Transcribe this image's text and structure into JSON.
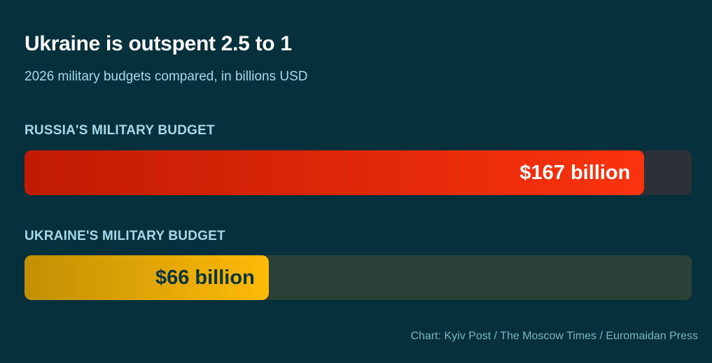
{
  "header": {
    "title": "Ukraine is outspent 2.5 to 1",
    "subtitle": "2026 military budgets compared, in billions USD"
  },
  "bars": [
    {
      "label": "RUSSIA'S MILITARY BUDGET",
      "value": 167,
      "value_label": "$167 billion",
      "percent_of_scale": 92.9,
      "fill_gradient_start": "#c01b03",
      "fill_gradient_end": "#fb330e",
      "track_color": "#2c3037",
      "value_text_color": "#ffffff"
    },
    {
      "label": "UKRAINE'S MILITARY BUDGET",
      "value": 66,
      "value_label": "$66 billion",
      "percent_of_scale": 36.6,
      "fill_gradient_start": "#c29004",
      "fill_gradient_end": "#fdba08",
      "track_color": "#2b4137",
      "value_text_color": "#073440"
    }
  ],
  "footer": {
    "credit": "Chart: Kyiv Post / The Moscow Times / Euromaidan Press"
  },
  "colors": {
    "background": "#06303c",
    "title": "#ffffff",
    "subtitle": "#a5d8e8",
    "bar_label": "#a5d8e8",
    "credit": "#79b4c4"
  },
  "chart_data": {
    "type": "bar",
    "orientation": "horizontal",
    "title": "Ukraine is outspent 2.5 to 1",
    "subtitle": "2026 military budgets compared, in billions USD",
    "categories": [
      "RUSSIA'S MILITARY BUDGET",
      "UKRAINE'S MILITARY BUDGET"
    ],
    "values": [
      167,
      66
    ],
    "value_labels": [
      "$167 billion",
      "$66 billion"
    ],
    "unit": "billions USD",
    "xlim": [
      0,
      180
    ],
    "grid": false,
    "legend": false,
    "annotations": [],
    "credit": "Chart: Kyiv Post / The Moscow Times / Euromaidan Press"
  }
}
